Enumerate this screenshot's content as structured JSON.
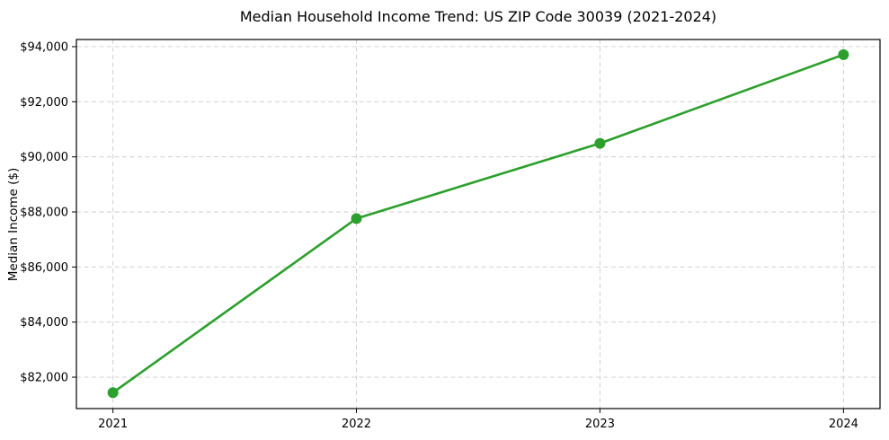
{
  "page": {
    "background_color": "#ffffff",
    "text_color": "#000000"
  },
  "chart_data": {
    "type": "line",
    "title": "Median Household Income Trend: US ZIP Code 30039 (2021-2024)",
    "xlabel": "",
    "ylabel": "Median Income ($)",
    "x": [
      2021,
      2022,
      2023,
      2024
    ],
    "values": [
      81440,
      87760,
      90490,
      93710
    ],
    "xlim": [
      2020.85,
      2024.15
    ],
    "ylim": [
      80860,
      94260
    ],
    "x_ticks": [
      {
        "value": 2021,
        "label": "2021"
      },
      {
        "value": 2022,
        "label": "2022"
      },
      {
        "value": 2023,
        "label": "2023"
      },
      {
        "value": 2024,
        "label": "2024"
      }
    ],
    "y_ticks": [
      {
        "value": 82000,
        "label": "$82,000"
      },
      {
        "value": 84000,
        "label": "$84,000"
      },
      {
        "value": 86000,
        "label": "$86,000"
      },
      {
        "value": 88000,
        "label": "$88,000"
      },
      {
        "value": 90000,
        "label": "$90,000"
      },
      {
        "value": 92000,
        "label": "$92,000"
      },
      {
        "value": 94000,
        "label": "$94,000"
      }
    ],
    "grid": true,
    "grid_style": "dashed",
    "grid_color": "#cccccc",
    "line_color": "#2ca02c",
    "marker": "circle",
    "legend_position": "none"
  }
}
